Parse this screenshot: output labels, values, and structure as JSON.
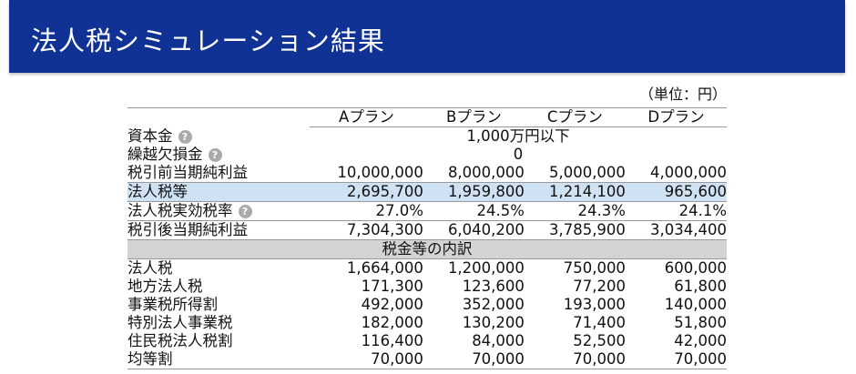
{
  "header": {
    "title": "法人税シミュレーション結果",
    "bg_color": "#0f3294"
  },
  "unit": "（単位：円）",
  "columns": [
    "Aプラン",
    "Bプラン",
    "Cプラン",
    "Dプラン"
  ],
  "rows": {
    "capital": {
      "label": "資本金",
      "value": "1,000万円以下",
      "help_icon": "question-circle-icon"
    },
    "loss_carryforward": {
      "label": "繰越欠損金",
      "value": "0",
      "help_icon": "question-circle-icon"
    },
    "pretax": {
      "label": "税引前当期純利益",
      "values": [
        "10,000,000",
        "8,000,000",
        "5,000,000",
        "4,000,000"
      ]
    },
    "tax_total": {
      "label": "法人税等",
      "values": [
        "2,695,700",
        "1,959,800",
        "1,214,100",
        "965,600"
      ],
      "highlight_color": "#cfe2f3"
    },
    "effective_rate": {
      "label": "法人税実効税率",
      "values": [
        "27.0%",
        "24.5%",
        "24.3%",
        "24.1%"
      ],
      "help_icon": "question-circle-icon"
    },
    "aftertax": {
      "label": "税引後当期純利益",
      "values": [
        "7,304,300",
        "6,040,200",
        "3,785,900",
        "3,034,400"
      ]
    }
  },
  "breakdown": {
    "title": "税金等の内訳",
    "rows": [
      {
        "label": "法人税",
        "values": [
          "1,664,000",
          "1,200,000",
          "750,000",
          "600,000"
        ]
      },
      {
        "label": "地方法人税",
        "values": [
          "171,300",
          "123,600",
          "77,200",
          "61,800"
        ]
      },
      {
        "label": "事業税所得割",
        "values": [
          "492,000",
          "352,000",
          "193,000",
          "140,000"
        ]
      },
      {
        "label": "特別法人事業税",
        "values": [
          "182,000",
          "130,200",
          "71,400",
          "51,800"
        ]
      },
      {
        "label": "住民税法人税割",
        "values": [
          "116,400",
          "84,000",
          "52,500",
          "42,000"
        ]
      },
      {
        "label": "均等割",
        "values": [
          "70,000",
          "70,000",
          "70,000",
          "70,000"
        ]
      }
    ]
  }
}
